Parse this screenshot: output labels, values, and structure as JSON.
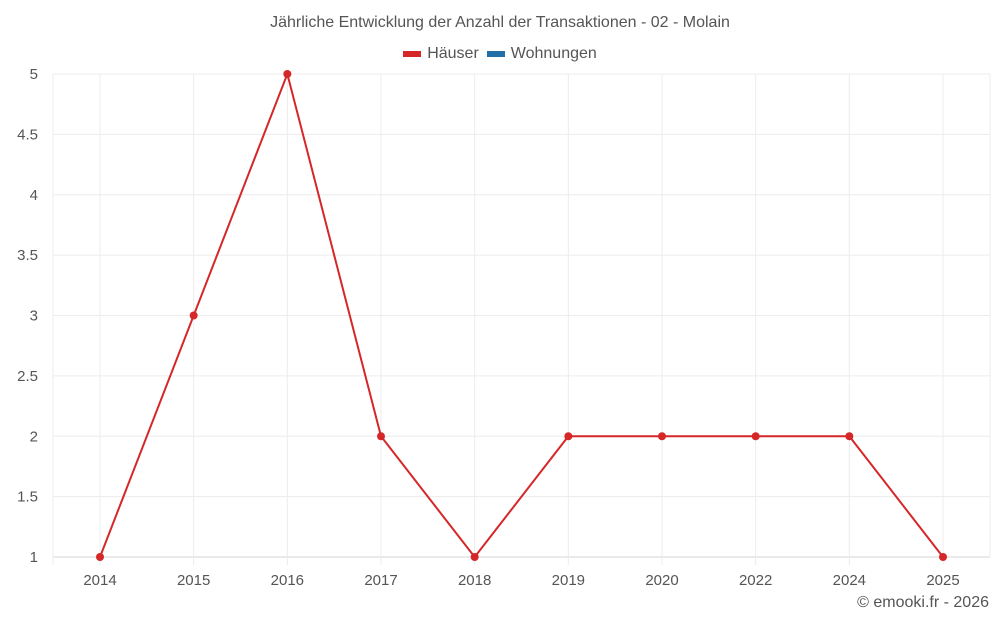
{
  "chart_data": {
    "type": "line",
    "title": "Jährliche Entwicklung der Anzahl der Transaktionen - 02 - Molain",
    "categories": [
      "2014",
      "2015",
      "2016",
      "2017",
      "2018",
      "2019",
      "2020",
      "2022",
      "2024",
      "2025"
    ],
    "series": [
      {
        "name": "Häuser",
        "color": "#d62728",
        "values": [
          1,
          3,
          5,
          2,
          1,
          2,
          2,
          2,
          2,
          1
        ]
      },
      {
        "name": "Wohnungen",
        "color": "#1f6fa8",
        "values": []
      }
    ],
    "xlabel": "",
    "ylabel": "",
    "ylim": [
      1,
      5
    ],
    "yticks": [
      "1",
      "1.5",
      "2",
      "2.5",
      "3",
      "3.5",
      "4",
      "4.5",
      "5"
    ],
    "grid": true,
    "legend_position": "top"
  },
  "header": {
    "title": "Jährliche Entwicklung der Anzahl der Transaktionen - 02 - Molain"
  },
  "legend": {
    "items": [
      {
        "label": "Häuser",
        "color": "#d62728"
      },
      {
        "label": "Wohnungen",
        "color": "#1f6fa8"
      }
    ]
  },
  "footer": {
    "credit": "© emooki.fr - 2026"
  }
}
